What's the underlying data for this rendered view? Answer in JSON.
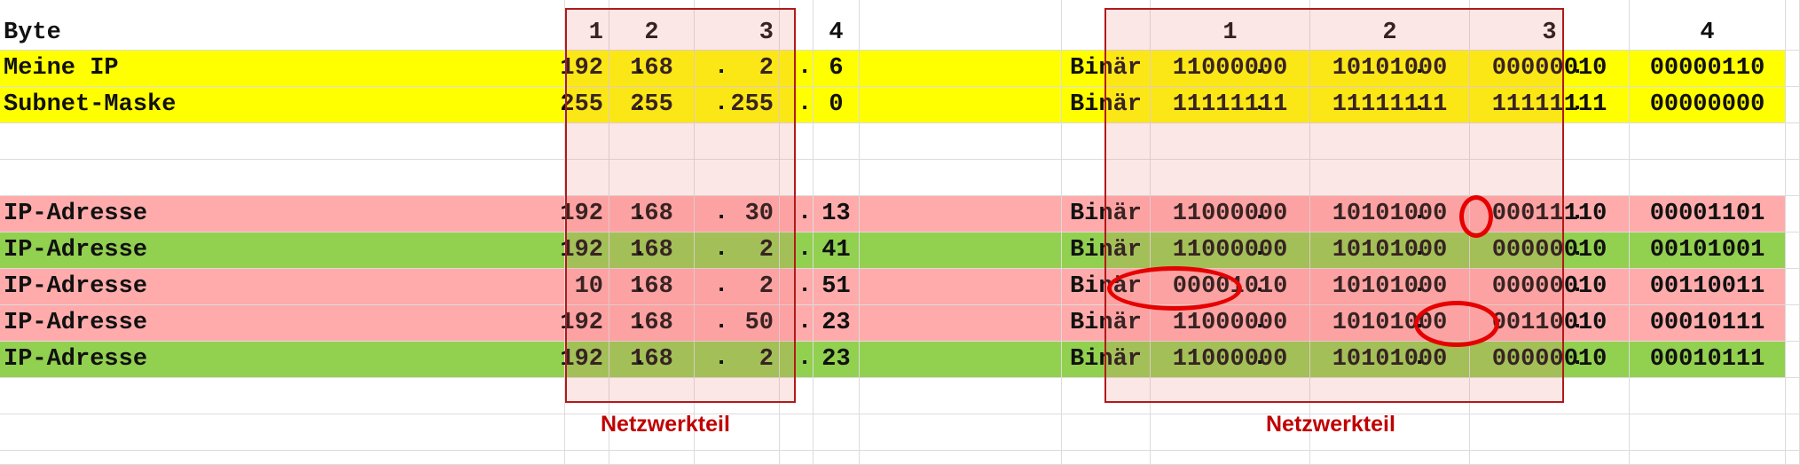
{
  "header": {
    "label": "Byte",
    "byte1": "1",
    "byte2": "2",
    "byte3": "3",
    "byte4": "4",
    "bin1": "1",
    "bin2": "2",
    "bin3": "3",
    "bin4": "4"
  },
  "rows": [
    {
      "label": "Meine IP",
      "b1": "192",
      "b2": "168",
      "b3": "2",
      "b4": "6",
      "kind": "Binär",
      "bin1": "11000000",
      "bin2": "10101000",
      "bin3": "00000010",
      "bin4": "00000110"
    },
    {
      "label": "Subnet-Maske",
      "b1": "255",
      "b2": "255",
      "b3": "255",
      "b4": "0",
      "kind": "Binär",
      "bin1": "11111111",
      "bin2": "11111111",
      "bin3": "11111111",
      "bin4": "00000000"
    },
    {
      "label": "IP-Adresse",
      "b1": "192",
      "b2": "168",
      "b3": "30",
      "b4": "13",
      "kind": "Binär",
      "bin1": "11000000",
      "bin2": "10101000",
      "bin3": "00011110",
      "bin4": "00001101"
    },
    {
      "label": "IP-Adresse",
      "b1": "192",
      "b2": "168",
      "b3": "2",
      "b4": "41",
      "kind": "Binär",
      "bin1": "11000000",
      "bin2": "10101000",
      "bin3": "00000010",
      "bin4": "00101001"
    },
    {
      "label": "IP-Adresse",
      "b1": "10",
      "b2": "168",
      "b3": "2",
      "b4": "51",
      "kind": "Binär",
      "bin1": "00001010",
      "bin2": "10101000",
      "bin3": "00000010",
      "bin4": "00110011"
    },
    {
      "label": "IP-Adresse",
      "b1": "192",
      "b2": "168",
      "b3": "50",
      "b4": "23",
      "kind": "Binär",
      "bin1": "11000000",
      "bin2": "10101000",
      "bin3": "00110010",
      "bin4": "00010111"
    },
    {
      "label": "IP-Adresse",
      "b1": "192",
      "b2": "168",
      "b3": "2",
      "b4": "23",
      "kind": "Binär",
      "bin1": "11000000",
      "bin2": "10101000",
      "bin3": "00000010",
      "bin4": "00010111"
    }
  ],
  "captions": {
    "left": "Netzwerkteil",
    "right": "Netzwerkteil"
  },
  "separator": ".",
  "colors": {
    "yellow": "#ffff00",
    "pink": "#ffabab",
    "green": "#92d050",
    "frame": "#b11a1a",
    "caption": "#c00000",
    "highlight": "#e60000"
  }
}
